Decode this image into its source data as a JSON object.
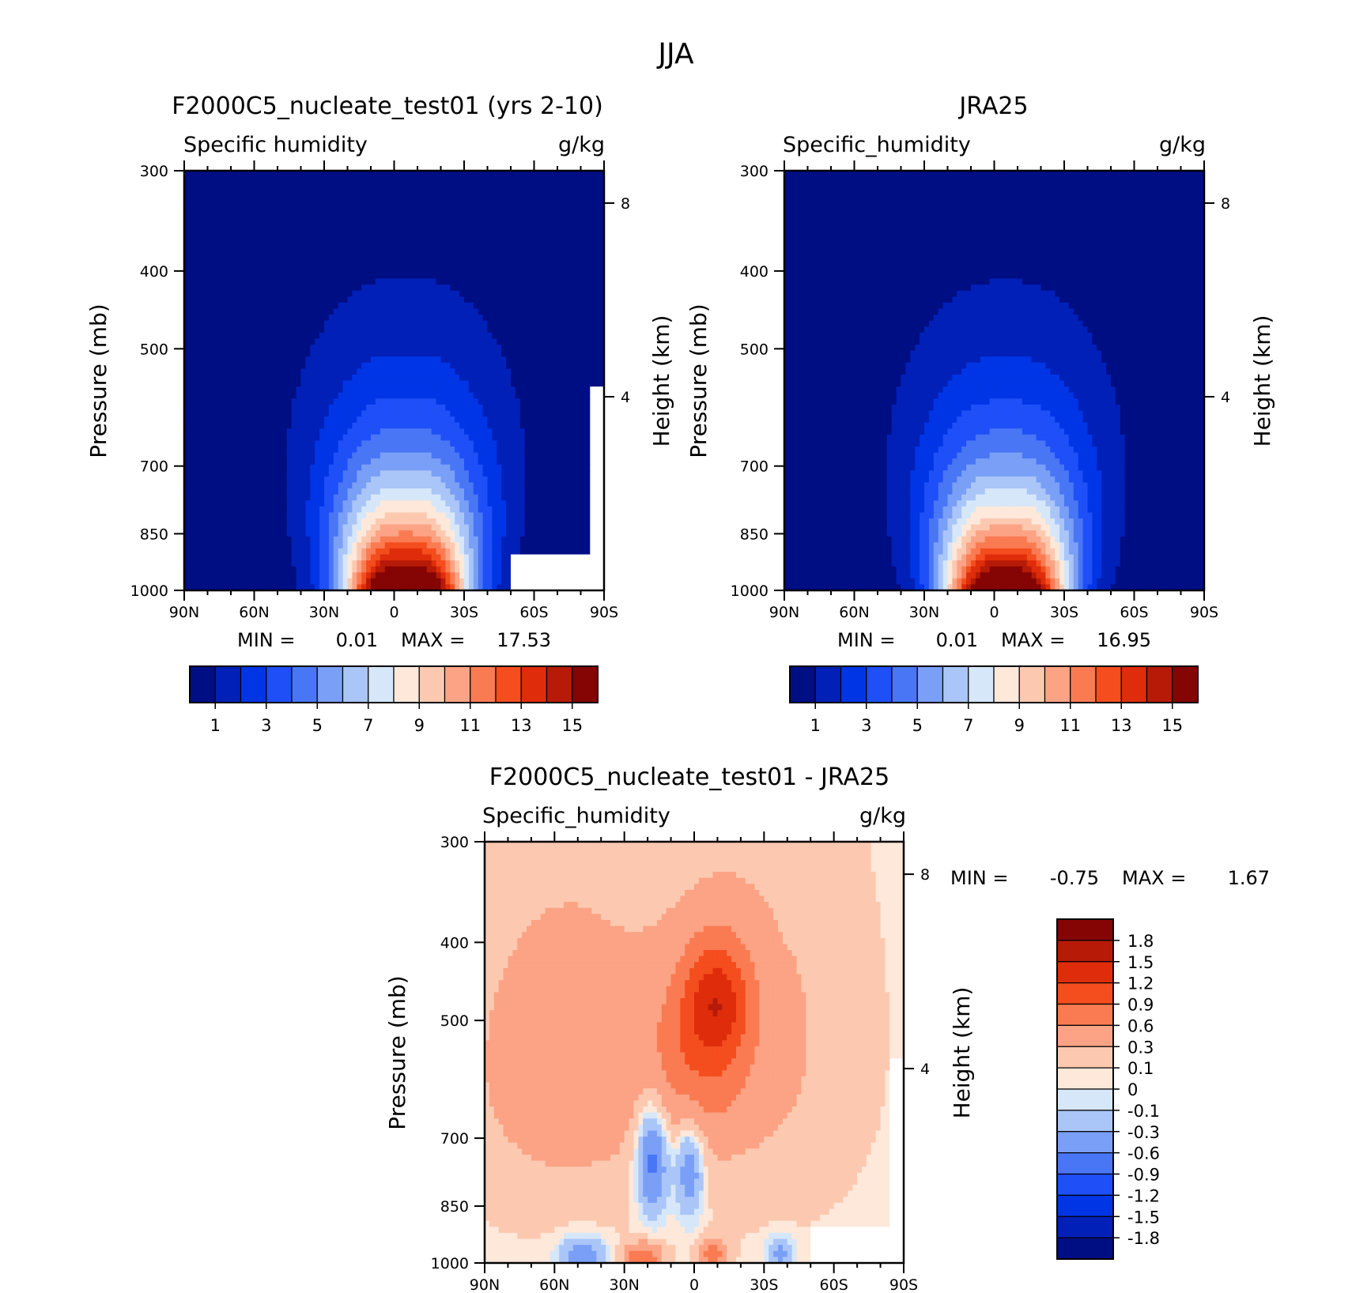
{
  "figure_title": "JJA",
  "colors": {
    "abs_palette": [
      "#000e84",
      "#0020b8",
      "#0035e6",
      "#1e4ff7",
      "#4876f5",
      "#7a9ff7",
      "#aac5f7",
      "#d6e7fa",
      "#fde8da",
      "#fcc9b0",
      "#fba384",
      "#fa7b52",
      "#f44d1e",
      "#df2c0b",
      "#b71a07",
      "#850404"
    ],
    "diff_palette": [
      "#000e84",
      "#0020b8",
      "#0035e6",
      "#1e4ff7",
      "#4876f5",
      "#7a9ff7",
      "#aac5f7",
      "#d6e7fa",
      "#fde8da",
      "#fcc9b0",
      "#fba384",
      "#fa7b52",
      "#f44d1e",
      "#df2c0b",
      "#b71a07",
      "#850404"
    ],
    "missing": "#ffffff"
  },
  "chart_data": [
    {
      "type": "heatmap",
      "title": "F2000C5_nucleate_test01 (yrs 2-10)",
      "variable_label": "Specific humidity",
      "units_label": "g/kg",
      "ylabel": "Pressure (mb)",
      "ylabel_right": "Height (km)",
      "x_tick_labels": [
        "90N",
        "60N",
        "30N",
        "0",
        "30S",
        "60S",
        "90S"
      ],
      "x_tick_values": [
        90,
        60,
        30,
        0,
        -30,
        -60,
        -90
      ],
      "xlim": [
        90,
        -90
      ],
      "y_tick_labels": [
        "300",
        "400",
        "500",
        "700",
        "850",
        "1000"
      ],
      "y_tick_values": [
        300,
        400,
        500,
        700,
        850,
        1000
      ],
      "ylim": [
        1000,
        300
      ],
      "y_scale": "log",
      "height_tick_labels": [
        "8",
        "4"
      ],
      "height_tick_values": [
        8,
        4
      ],
      "min_label": "MIN =",
      "min_value": "0.01",
      "max_label": "MAX =",
      "max_value": "17.53",
      "colorbar": {
        "orientation": "horizontal",
        "tick_labels": [
          "1",
          "3",
          "5",
          "7",
          "9",
          "11",
          "13",
          "15"
        ]
      },
      "field": {
        "kind": "abs",
        "max": 17.5,
        "center_lat": -5,
        "missing_south_of_lat": -50,
        "missing_below_mb": 900
      }
    },
    {
      "type": "heatmap",
      "title": "JRA25",
      "variable_label": "Specific_humidity",
      "units_label": "g/kg",
      "ylabel": "Pressure (mb)",
      "ylabel_right": "Height (km)",
      "x_tick_labels": [
        "90N",
        "60N",
        "30N",
        "0",
        "30S",
        "60S",
        "90S"
      ],
      "x_tick_values": [
        90,
        60,
        30,
        0,
        -30,
        -60,
        -90
      ],
      "xlim": [
        90,
        -90
      ],
      "y_tick_labels": [
        "300",
        "400",
        "500",
        "700",
        "850",
        "1000"
      ],
      "y_tick_values": [
        300,
        400,
        500,
        700,
        850,
        1000
      ],
      "ylim": [
        1000,
        300
      ],
      "y_scale": "log",
      "height_tick_labels": [
        "8",
        "4"
      ],
      "height_tick_values": [
        8,
        4
      ],
      "min_label": "MIN =",
      "min_value": "0.01",
      "max_label": "MAX =",
      "max_value": "16.95",
      "colorbar": {
        "orientation": "horizontal",
        "tick_labels": [
          "1",
          "3",
          "5",
          "7",
          "9",
          "11",
          "13",
          "15"
        ]
      },
      "field": {
        "kind": "abs",
        "max": 16.9,
        "center_lat": -5,
        "missing_south_of_lat": null,
        "missing_below_mb": null
      }
    },
    {
      "type": "heatmap",
      "title": "F2000C5_nucleate_test01 - JRA25",
      "variable_label": "Specific_humidity",
      "units_label": "g/kg",
      "ylabel": "Pressure (mb)",
      "ylabel_right": "Height (km)",
      "x_tick_labels": [
        "90N",
        "60N",
        "30N",
        "0",
        "30S",
        "60S",
        "90S"
      ],
      "x_tick_values": [
        90,
        60,
        30,
        0,
        -30,
        -60,
        -90
      ],
      "xlim": [
        90,
        -90
      ],
      "y_tick_labels": [
        "300",
        "400",
        "500",
        "700",
        "850",
        "1000"
      ],
      "y_tick_values": [
        300,
        400,
        500,
        700,
        850,
        1000
      ],
      "ylim": [
        1000,
        300
      ],
      "y_scale": "log",
      "height_tick_labels": [
        "8",
        "4"
      ],
      "height_tick_values": [
        8,
        4
      ],
      "min_label": "MIN =",
      "min_value": "-0.75",
      "max_label": "MAX =",
      "max_value": "1.67",
      "colorbar": {
        "orientation": "vertical",
        "tick_labels": [
          "1.8",
          "1.5",
          "1.2",
          "0.9",
          "0.6",
          "0.3",
          "0.1",
          "0",
          "-0.1",
          "-0.3",
          "-0.6",
          "-0.9",
          "-1.2",
          "-1.5",
          "-1.8"
        ]
      },
      "field": {
        "kind": "diff",
        "missing_south_of_lat": -50,
        "missing_below_mb": 900
      }
    }
  ]
}
